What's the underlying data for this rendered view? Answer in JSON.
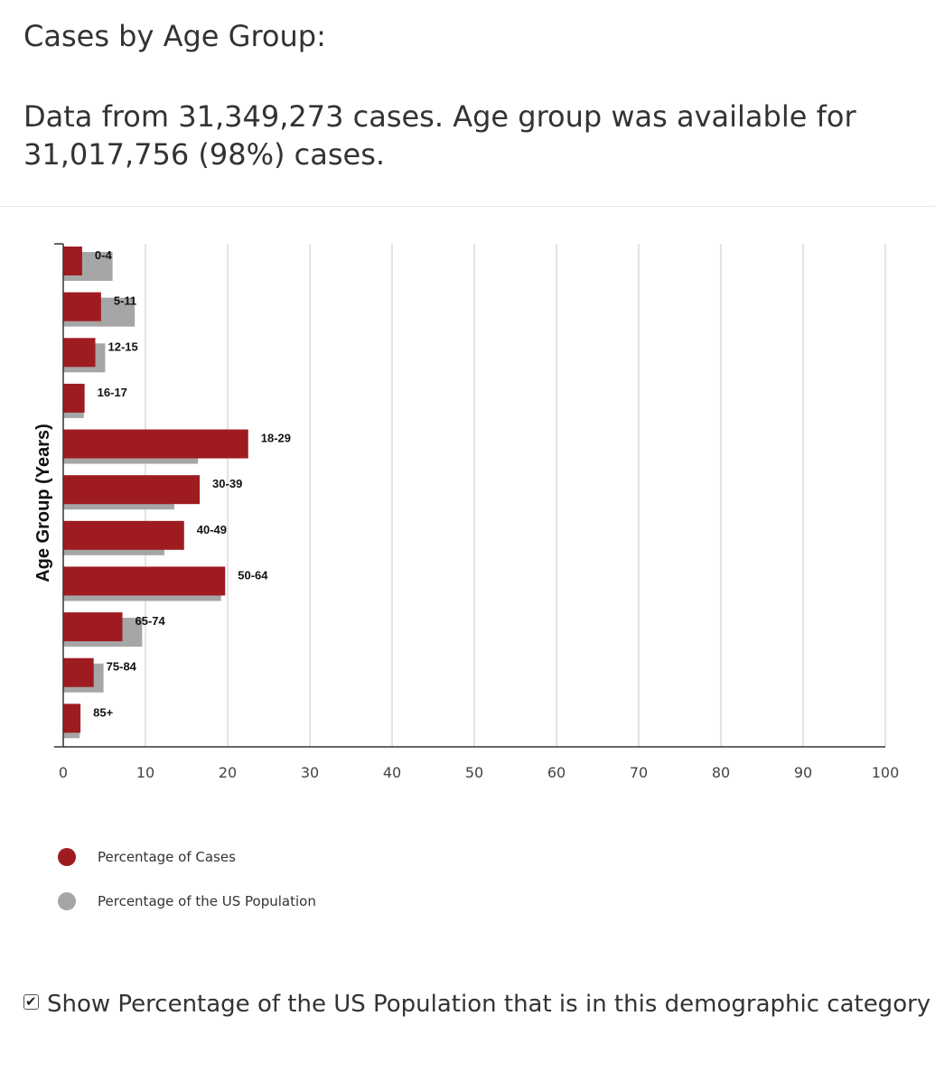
{
  "header": {
    "title": "Cases by Age Group:",
    "summary": "Data from 31,349,273 cases. Age group was available for 31,017,756 (98%) cases."
  },
  "colors": {
    "cases": "#9e1c20",
    "population": "#a6a6a6",
    "grid": "#d2d2d2",
    "axis": "#333333"
  },
  "chart_data": {
    "type": "bar",
    "orientation": "horizontal",
    "ylabel": "Age Group (Years)",
    "xlabel": "",
    "xlim": [
      0,
      100
    ],
    "xticks": [
      "0",
      "10",
      "20",
      "30",
      "40",
      "50",
      "60",
      "70",
      "80",
      "90",
      "100"
    ],
    "grid": true,
    "legend_position": "bottom-left",
    "categories": [
      "0-4",
      "5-11",
      "12-15",
      "16-17",
      "18-29",
      "30-39",
      "40-49",
      "50-64",
      "65-74",
      "75-84",
      "85+"
    ],
    "series": [
      {
        "name": "Percentage of Cases",
        "values": [
          2.3,
          4.6,
          3.9,
          2.6,
          22.5,
          16.6,
          14.7,
          19.7,
          7.2,
          3.7,
          2.1
        ]
      },
      {
        "name": "Percentage of the US Population",
        "values": [
          6.0,
          8.7,
          5.1,
          2.5,
          16.4,
          13.5,
          12.3,
          19.2,
          9.6,
          4.9,
          2.0
        ]
      }
    ]
  },
  "legend": {
    "cases_label": "Percentage of Cases",
    "population_label": "Percentage of the US Population"
  },
  "toggle": {
    "label": "Show Percentage of the US Population that is in this demographic category",
    "checked": true
  }
}
